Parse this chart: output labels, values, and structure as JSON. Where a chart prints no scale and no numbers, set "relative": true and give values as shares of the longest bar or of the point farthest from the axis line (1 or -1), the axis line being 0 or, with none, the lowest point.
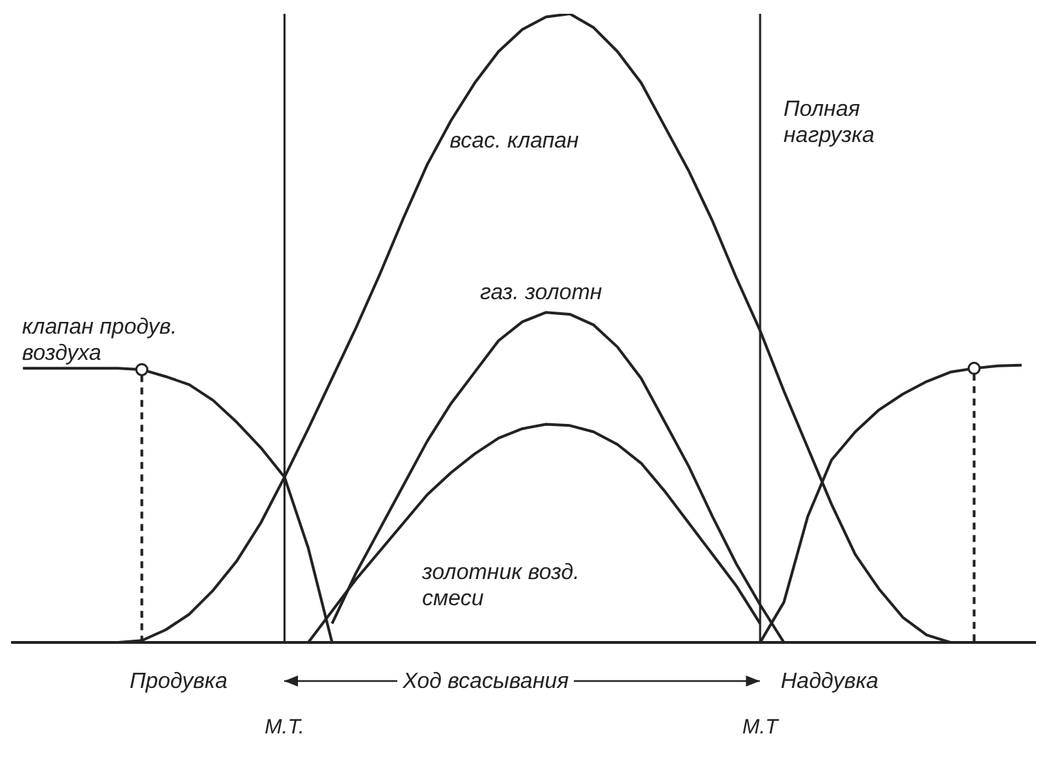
{
  "chart_data": {
    "type": "line",
    "relative": true,
    "legend": false,
    "marker": "none",
    "line_style": "solid",
    "categories": [
      null,
      null,
      null,
      null,
      null,
      null,
      null,
      null,
      null,
      null,
      null,
      "М.Т.",
      null,
      null,
      null,
      null,
      null,
      null,
      null,
      null,
      null,
      null,
      null,
      null,
      null,
      null,
      null,
      null,
      null,
      null,
      null,
      "М.Т",
      null,
      null,
      null,
      null,
      null,
      null,
      null,
      null,
      null,
      null,
      null
    ],
    "series": [
      {
        "name": "всас. клапан",
        "color": "#222222",
        "values": [
          null,
          null,
          null,
          null,
          0,
          0.003,
          0.02,
          0.045,
          0.083,
          0.13,
          0.19,
          0.263,
          0.34,
          0.42,
          0.5,
          0.585,
          0.675,
          0.76,
          0.83,
          0.89,
          0.94,
          0.975,
          0.995,
          1,
          0.978,
          0.94,
          0.89,
          0.82,
          0.75,
          0.67,
          0.58,
          0.496,
          0.4,
          0.31,
          0.22,
          0.14,
          0.085,
          0.04,
          0.012,
          0,
          null,
          null,
          null
        ]
      },
      {
        "name": "газ. золотн",
        "color": "#222222",
        "values": [
          null,
          null,
          null,
          null,
          null,
          null,
          null,
          null,
          null,
          null,
          null,
          null,
          null,
          0.03,
          0.11,
          0.18,
          0.25,
          0.32,
          0.38,
          0.43,
          0.48,
          0.51,
          0.525,
          0.522,
          0.505,
          0.47,
          0.42,
          0.35,
          0.28,
          0.2,
          0.125,
          0.06,
          0,
          null,
          null,
          null,
          null,
          null,
          null,
          null,
          null,
          null,
          null
        ]
      },
      {
        "name": "золотник возд. смеси",
        "color": "#222222",
        "values": [
          null,
          null,
          null,
          null,
          null,
          null,
          null,
          null,
          null,
          null,
          null,
          null,
          0,
          0.05,
          0.1,
          0.145,
          0.19,
          0.235,
          0.27,
          0.3,
          0.325,
          0.34,
          0.347,
          0.345,
          0.335,
          0.315,
          0.285,
          0.24,
          0.19,
          0.14,
          0.09,
          0.03,
          null,
          null,
          null,
          null,
          null,
          null,
          null,
          null,
          null,
          null,
          null
        ]
      },
      {
        "name": "клапан продув. воздуха",
        "color": "#222222",
        "values": [
          0.436,
          0.436,
          0.436,
          0.436,
          0.436,
          0.434,
          0.423,
          0.41,
          0.385,
          0.35,
          0.31,
          0.263,
          0.15,
          0,
          null,
          null,
          null,
          null,
          null,
          null,
          null,
          null,
          null,
          null,
          null,
          null,
          null,
          null,
          null,
          null,
          null,
          null,
          null,
          null,
          null,
          null,
          null,
          null,
          null,
          null,
          null,
          null,
          null
        ]
      },
      {
        "color": "#222222",
        "values": [
          null,
          null,
          null,
          null,
          null,
          null,
          null,
          null,
          null,
          null,
          null,
          null,
          null,
          null,
          null,
          null,
          null,
          null,
          null,
          null,
          null,
          null,
          null,
          null,
          null,
          null,
          null,
          null,
          null,
          null,
          null,
          0,
          0.064,
          0.2,
          0.29,
          0.335,
          0.37,
          0.395,
          0.415,
          0.43,
          0.436,
          0.44,
          0.441
        ]
      },
      {
        "type": "scatter",
        "marker": "circle",
        "color": "#222222",
        "values": [
          null,
          null,
          null,
          null,
          null,
          0.434,
          null,
          null,
          null,
          null,
          null,
          null,
          null,
          null,
          null,
          null,
          null,
          null,
          null,
          null,
          null,
          null,
          null,
          null,
          null,
          null,
          null,
          null,
          null,
          null,
          null,
          null,
          null,
          null,
          null,
          null,
          null,
          null,
          null,
          null,
          0.436,
          null,
          null
        ]
      }
    ],
    "ref_lines": [
      {
        "axis": "x",
        "value": "М.Т."
      },
      {
        "axis": "x",
        "value": "М.Т"
      }
    ],
    "annotations": [
      "Полная нагрузка",
      "Продувка",
      "Ход всасывания",
      "Наддувка"
    ]
  }
}
